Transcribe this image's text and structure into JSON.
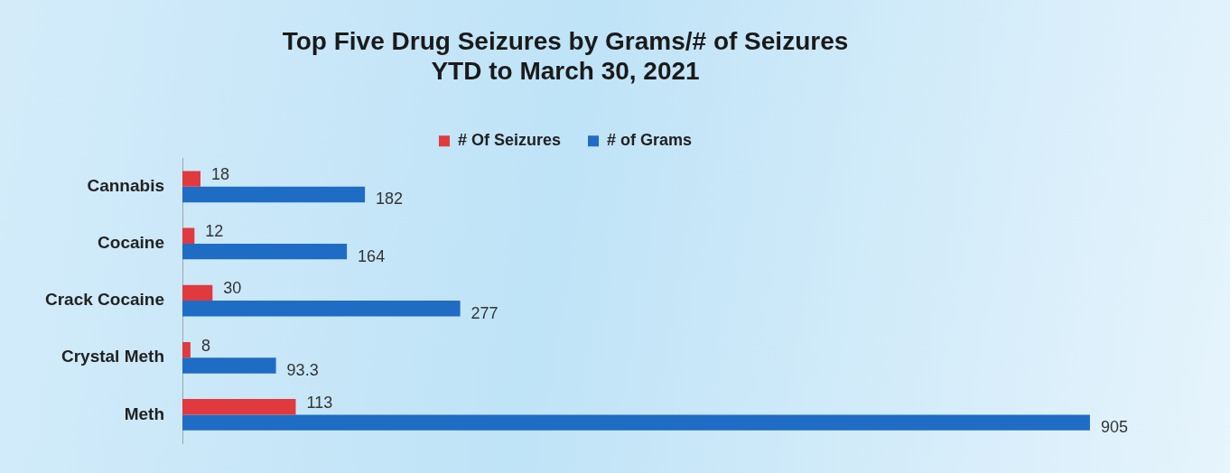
{
  "chart_data": {
    "type": "bar",
    "orientation": "horizontal",
    "title": "Top Five Drug Seizures by Grams/# of Seizures\nYTD to March 30, 2021",
    "categories": [
      "Cannabis",
      "Cocaine",
      "Crack Cocaine",
      "Crystal Meth",
      "Meth"
    ],
    "series": [
      {
        "name": "# Of Seizures",
        "color": "#e0393e",
        "values": [
          18,
          12,
          30,
          8,
          113
        ]
      },
      {
        "name": "# of Grams",
        "color": "#1f6cc4",
        "values": [
          182,
          164,
          277,
          93.3,
          905
        ]
      }
    ],
    "relative": false,
    "data_labels": true,
    "legend": "top",
    "grid": false
  }
}
